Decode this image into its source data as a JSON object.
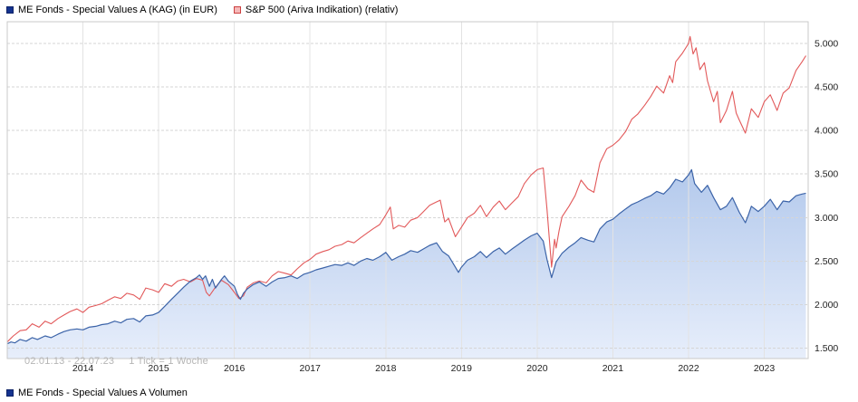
{
  "header_legend": {
    "series1_label": "ME Fonds - Special Values A (KAG) (in EUR)",
    "series2_label": "S&P 500 (Ariva Indikation) (relativ)"
  },
  "footer_legend": {
    "label": "ME Fonds - Special Values A Volumen"
  },
  "watermark": {
    "range": "02.01.13 - 22.07.23",
    "tick_info": "1 Tick = 1 Woche"
  },
  "colors": {
    "fund_line": "#3b63a8",
    "fund_swatch": "#15338f",
    "fund_swatch_border": "#0d2368",
    "fund_fill_top": "#b3c9ec",
    "fund_fill_bottom": "#e7eefb",
    "sp500_line": "#e2595a",
    "sp500_swatch_fill": "#f5b9b9",
    "sp500_swatch_border": "#cc4040",
    "grid": "#d9d9d9",
    "axis_text": "#222222",
    "watermark_text": "#b5b5b5"
  },
  "chart_data": {
    "type": "line",
    "title": "",
    "x_axis": {
      "range": [
        2013.0,
        2023.58
      ],
      "ticks": [
        2014,
        2015,
        2016,
        2017,
        2018,
        2019,
        2020,
        2021,
        2022,
        2023
      ]
    },
    "y_axis": {
      "position": "right",
      "range": [
        1.38,
        5.25
      ],
      "ticks": [
        {
          "label": "1.500",
          "value": 1.5
        },
        {
          "label": "2.000",
          "value": 2.0
        },
        {
          "label": "2.500",
          "value": 2.5
        },
        {
          "label": "3.000",
          "value": 3.0
        },
        {
          "label": "3.500",
          "value": 3.5
        },
        {
          "label": "4.000",
          "value": 4.0
        },
        {
          "label": "4.500",
          "value": 4.5
        },
        {
          "label": "5.000",
          "value": 5.0
        }
      ]
    },
    "series": [
      {
        "name": "ME Fonds - Special Values A (KAG) (in EUR)",
        "color": "#3b63a8",
        "area": true,
        "fill_top": "#b3c9ec",
        "fill_bottom": "#e7eefb",
        "points": [
          [
            2013.0,
            1.55
          ],
          [
            2013.05,
            1.57
          ],
          [
            2013.1,
            1.56
          ],
          [
            2013.17,
            1.6
          ],
          [
            2013.25,
            1.58
          ],
          [
            2013.33,
            1.62
          ],
          [
            2013.4,
            1.6
          ],
          [
            2013.5,
            1.64
          ],
          [
            2013.58,
            1.62
          ],
          [
            2013.67,
            1.66
          ],
          [
            2013.75,
            1.69
          ],
          [
            2013.83,
            1.71
          ],
          [
            2013.92,
            1.72
          ],
          [
            2014.0,
            1.71
          ],
          [
            2014.08,
            1.74
          ],
          [
            2014.17,
            1.75
          ],
          [
            2014.25,
            1.77
          ],
          [
            2014.33,
            1.78
          ],
          [
            2014.42,
            1.81
          ],
          [
            2014.5,
            1.79
          ],
          [
            2014.58,
            1.83
          ],
          [
            2014.67,
            1.84
          ],
          [
            2014.75,
            1.8
          ],
          [
            2014.83,
            1.87
          ],
          [
            2014.92,
            1.88
          ],
          [
            2015.0,
            1.91
          ],
          [
            2015.08,
            1.98
          ],
          [
            2015.17,
            2.06
          ],
          [
            2015.25,
            2.13
          ],
          [
            2015.33,
            2.2
          ],
          [
            2015.42,
            2.27
          ],
          [
            2015.5,
            2.31
          ],
          [
            2015.54,
            2.34
          ],
          [
            2015.58,
            2.29
          ],
          [
            2015.62,
            2.33
          ],
          [
            2015.67,
            2.21
          ],
          [
            2015.71,
            2.29
          ],
          [
            2015.75,
            2.19
          ],
          [
            2015.83,
            2.29
          ],
          [
            2015.87,
            2.33
          ],
          [
            2015.92,
            2.27
          ],
          [
            2016.0,
            2.21
          ],
          [
            2016.04,
            2.12
          ],
          [
            2016.08,
            2.06
          ],
          [
            2016.12,
            2.13
          ],
          [
            2016.17,
            2.18
          ],
          [
            2016.25,
            2.23
          ],
          [
            2016.33,
            2.26
          ],
          [
            2016.42,
            2.21
          ],
          [
            2016.5,
            2.26
          ],
          [
            2016.58,
            2.3
          ],
          [
            2016.67,
            2.31
          ],
          [
            2016.75,
            2.33
          ],
          [
            2016.83,
            2.3
          ],
          [
            2016.92,
            2.35
          ],
          [
            2017.0,
            2.37
          ],
          [
            2017.08,
            2.4
          ],
          [
            2017.17,
            2.42
          ],
          [
            2017.25,
            2.44
          ],
          [
            2017.33,
            2.46
          ],
          [
            2017.42,
            2.45
          ],
          [
            2017.5,
            2.48
          ],
          [
            2017.58,
            2.45
          ],
          [
            2017.67,
            2.5
          ],
          [
            2017.75,
            2.53
          ],
          [
            2017.83,
            2.51
          ],
          [
            2017.92,
            2.55
          ],
          [
            2018.0,
            2.6
          ],
          [
            2018.08,
            2.51
          ],
          [
            2018.17,
            2.55
          ],
          [
            2018.25,
            2.58
          ],
          [
            2018.33,
            2.62
          ],
          [
            2018.42,
            2.6
          ],
          [
            2018.5,
            2.64
          ],
          [
            2018.58,
            2.68
          ],
          [
            2018.67,
            2.71
          ],
          [
            2018.75,
            2.61
          ],
          [
            2018.83,
            2.56
          ],
          [
            2018.92,
            2.43
          ],
          [
            2018.96,
            2.37
          ],
          [
            2019.0,
            2.43
          ],
          [
            2019.08,
            2.51
          ],
          [
            2019.17,
            2.55
          ],
          [
            2019.25,
            2.61
          ],
          [
            2019.33,
            2.54
          ],
          [
            2019.42,
            2.61
          ],
          [
            2019.5,
            2.65
          ],
          [
            2019.58,
            2.58
          ],
          [
            2019.67,
            2.64
          ],
          [
            2019.75,
            2.69
          ],
          [
            2019.83,
            2.74
          ],
          [
            2019.92,
            2.79
          ],
          [
            2020.0,
            2.82
          ],
          [
            2020.08,
            2.73
          ],
          [
            2020.13,
            2.52
          ],
          [
            2020.19,
            2.31
          ],
          [
            2020.25,
            2.49
          ],
          [
            2020.33,
            2.59
          ],
          [
            2020.42,
            2.66
          ],
          [
            2020.5,
            2.71
          ],
          [
            2020.58,
            2.77
          ],
          [
            2020.67,
            2.74
          ],
          [
            2020.75,
            2.72
          ],
          [
            2020.83,
            2.87
          ],
          [
            2020.92,
            2.95
          ],
          [
            2021.0,
            2.98
          ],
          [
            2021.08,
            3.04
          ],
          [
            2021.17,
            3.1
          ],
          [
            2021.25,
            3.15
          ],
          [
            2021.33,
            3.18
          ],
          [
            2021.42,
            3.22
          ],
          [
            2021.5,
            3.25
          ],
          [
            2021.58,
            3.3
          ],
          [
            2021.67,
            3.27
          ],
          [
            2021.75,
            3.34
          ],
          [
            2021.83,
            3.44
          ],
          [
            2021.92,
            3.41
          ],
          [
            2022.0,
            3.49
          ],
          [
            2022.04,
            3.55
          ],
          [
            2022.08,
            3.39
          ],
          [
            2022.17,
            3.29
          ],
          [
            2022.25,
            3.37
          ],
          [
            2022.33,
            3.23
          ],
          [
            2022.42,
            3.09
          ],
          [
            2022.5,
            3.13
          ],
          [
            2022.58,
            3.23
          ],
          [
            2022.67,
            3.06
          ],
          [
            2022.75,
            2.94
          ],
          [
            2022.79,
            3.03
          ],
          [
            2022.83,
            3.13
          ],
          [
            2022.92,
            3.07
          ],
          [
            2023.0,
            3.13
          ],
          [
            2023.08,
            3.21
          ],
          [
            2023.17,
            3.09
          ],
          [
            2023.25,
            3.19
          ],
          [
            2023.33,
            3.18
          ],
          [
            2023.42,
            3.25
          ],
          [
            2023.5,
            3.27
          ],
          [
            2023.55,
            3.28
          ]
        ]
      },
      {
        "name": "S&P 500 (Ariva Indikation) (relativ)",
        "color": "#e2595a",
        "area": false,
        "points": [
          [
            2013.0,
            1.57
          ],
          [
            2013.08,
            1.64
          ],
          [
            2013.17,
            1.7
          ],
          [
            2013.25,
            1.71
          ],
          [
            2013.33,
            1.78
          ],
          [
            2013.42,
            1.74
          ],
          [
            2013.5,
            1.81
          ],
          [
            2013.58,
            1.78
          ],
          [
            2013.67,
            1.84
          ],
          [
            2013.75,
            1.88
          ],
          [
            2013.83,
            1.92
          ],
          [
            2013.92,
            1.95
          ],
          [
            2014.0,
            1.91
          ],
          [
            2014.08,
            1.97
          ],
          [
            2014.17,
            1.99
          ],
          [
            2014.25,
            2.01
          ],
          [
            2014.33,
            2.05
          ],
          [
            2014.42,
            2.09
          ],
          [
            2014.5,
            2.07
          ],
          [
            2014.58,
            2.13
          ],
          [
            2014.67,
            2.11
          ],
          [
            2014.75,
            2.06
          ],
          [
            2014.83,
            2.19
          ],
          [
            2014.92,
            2.17
          ],
          [
            2015.0,
            2.14
          ],
          [
            2015.08,
            2.24
          ],
          [
            2015.17,
            2.21
          ],
          [
            2015.25,
            2.27
          ],
          [
            2015.33,
            2.29
          ],
          [
            2015.42,
            2.26
          ],
          [
            2015.5,
            2.3
          ],
          [
            2015.58,
            2.28
          ],
          [
            2015.63,
            2.14
          ],
          [
            2015.67,
            2.1
          ],
          [
            2015.75,
            2.2
          ],
          [
            2015.83,
            2.28
          ],
          [
            2015.92,
            2.23
          ],
          [
            2016.0,
            2.14
          ],
          [
            2016.06,
            2.07
          ],
          [
            2016.12,
            2.1
          ],
          [
            2016.17,
            2.2
          ],
          [
            2016.25,
            2.25
          ],
          [
            2016.33,
            2.27
          ],
          [
            2016.42,
            2.25
          ],
          [
            2016.5,
            2.33
          ],
          [
            2016.58,
            2.38
          ],
          [
            2016.67,
            2.36
          ],
          [
            2016.75,
            2.34
          ],
          [
            2016.83,
            2.41
          ],
          [
            2016.92,
            2.48
          ],
          [
            2017.0,
            2.52
          ],
          [
            2017.08,
            2.58
          ],
          [
            2017.17,
            2.61
          ],
          [
            2017.25,
            2.63
          ],
          [
            2017.33,
            2.67
          ],
          [
            2017.42,
            2.69
          ],
          [
            2017.5,
            2.73
          ],
          [
            2017.58,
            2.71
          ],
          [
            2017.67,
            2.77
          ],
          [
            2017.75,
            2.82
          ],
          [
            2017.83,
            2.87
          ],
          [
            2017.92,
            2.92
          ],
          [
            2018.0,
            3.03
          ],
          [
            2018.06,
            3.12
          ],
          [
            2018.1,
            2.87
          ],
          [
            2018.17,
            2.91
          ],
          [
            2018.25,
            2.89
          ],
          [
            2018.33,
            2.97
          ],
          [
            2018.42,
            3.0
          ],
          [
            2018.5,
            3.07
          ],
          [
            2018.58,
            3.14
          ],
          [
            2018.67,
            3.18
          ],
          [
            2018.72,
            3.2
          ],
          [
            2018.78,
            2.95
          ],
          [
            2018.83,
            2.99
          ],
          [
            2018.92,
            2.78
          ],
          [
            2019.0,
            2.89
          ],
          [
            2019.08,
            3.0
          ],
          [
            2019.17,
            3.05
          ],
          [
            2019.25,
            3.14
          ],
          [
            2019.33,
            3.01
          ],
          [
            2019.42,
            3.12
          ],
          [
            2019.5,
            3.19
          ],
          [
            2019.58,
            3.09
          ],
          [
            2019.67,
            3.17
          ],
          [
            2019.75,
            3.24
          ],
          [
            2019.83,
            3.39
          ],
          [
            2019.92,
            3.49
          ],
          [
            2020.0,
            3.55
          ],
          [
            2020.08,
            3.57
          ],
          [
            2020.13,
            3.1
          ],
          [
            2020.19,
            2.43
          ],
          [
            2020.23,
            2.75
          ],
          [
            2020.25,
            2.65
          ],
          [
            2020.29,
            2.85
          ],
          [
            2020.33,
            3.01
          ],
          [
            2020.42,
            3.13
          ],
          [
            2020.5,
            3.25
          ],
          [
            2020.58,
            3.43
          ],
          [
            2020.67,
            3.33
          ],
          [
            2020.75,
            3.29
          ],
          [
            2020.83,
            3.63
          ],
          [
            2020.92,
            3.79
          ],
          [
            2021.0,
            3.83
          ],
          [
            2021.08,
            3.89
          ],
          [
            2021.17,
            3.99
          ],
          [
            2021.25,
            4.13
          ],
          [
            2021.33,
            4.19
          ],
          [
            2021.42,
            4.29
          ],
          [
            2021.5,
            4.39
          ],
          [
            2021.58,
            4.51
          ],
          [
            2021.67,
            4.43
          ],
          [
            2021.75,
            4.63
          ],
          [
            2021.79,
            4.55
          ],
          [
            2021.83,
            4.79
          ],
          [
            2021.92,
            4.89
          ],
          [
            2022.0,
            5.0
          ],
          [
            2022.02,
            5.08
          ],
          [
            2022.06,
            4.88
          ],
          [
            2022.1,
            4.95
          ],
          [
            2022.15,
            4.7
          ],
          [
            2022.21,
            4.78
          ],
          [
            2022.25,
            4.57
          ],
          [
            2022.33,
            4.33
          ],
          [
            2022.38,
            4.45
          ],
          [
            2022.42,
            4.09
          ],
          [
            2022.5,
            4.23
          ],
          [
            2022.58,
            4.45
          ],
          [
            2022.63,
            4.2
          ],
          [
            2022.67,
            4.12
          ],
          [
            2022.75,
            3.97
          ],
          [
            2022.83,
            4.25
          ],
          [
            2022.92,
            4.15
          ],
          [
            2023.0,
            4.33
          ],
          [
            2023.08,
            4.41
          ],
          [
            2023.17,
            4.23
          ],
          [
            2023.25,
            4.43
          ],
          [
            2023.33,
            4.49
          ],
          [
            2023.42,
            4.69
          ],
          [
            2023.5,
            4.79
          ],
          [
            2023.55,
            4.86
          ]
        ]
      }
    ]
  }
}
